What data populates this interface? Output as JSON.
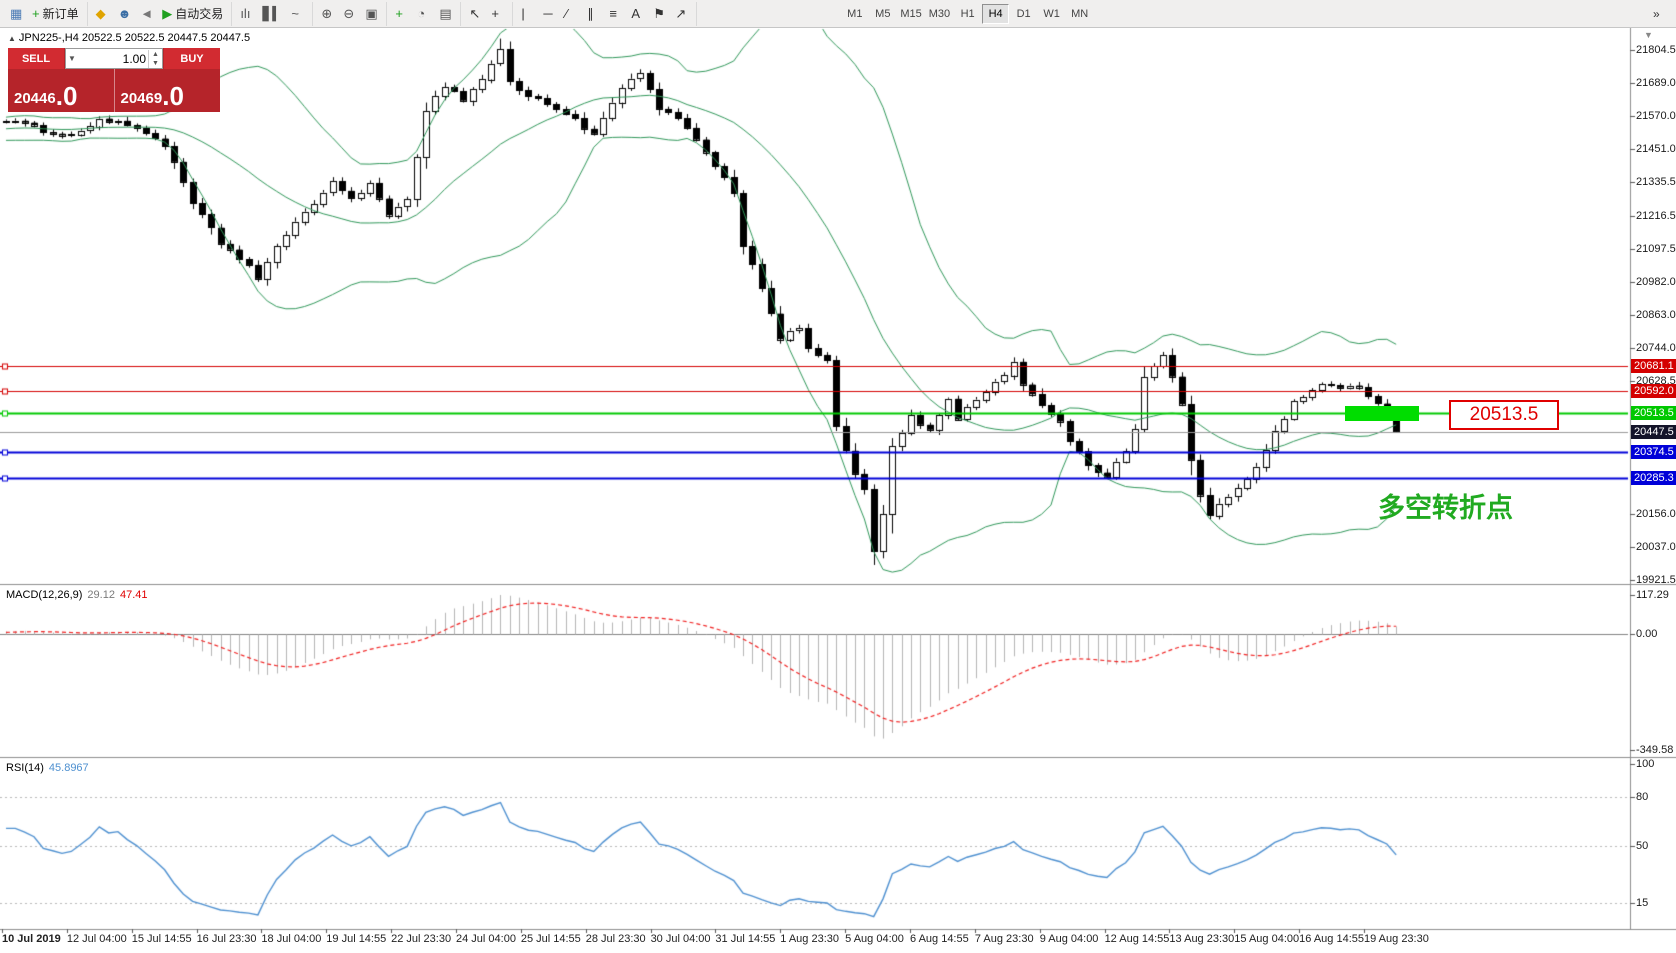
{
  "toolbar": {
    "groups": [
      {
        "name": "charts",
        "items": [
          {
            "name": "new-chart",
            "glyph": "▦",
            "color": "#4a7ab5"
          },
          {
            "name": "new-order",
            "glyph": "+",
            "color": "#1fa01f",
            "label": "新订单"
          }
        ]
      },
      {
        "name": "services",
        "items": [
          {
            "name": "navigator-diamond",
            "glyph": "◆",
            "color": "#e0a400"
          },
          {
            "name": "user-profile",
            "glyph": "☻",
            "color": "#3a6ea5"
          },
          {
            "name": "notifications",
            "glyph": "◄",
            "color": "#777777"
          },
          {
            "name": "autotrading",
            "glyph": "▶",
            "color": "#1fa01f",
            "label": "自动交易"
          }
        ]
      },
      {
        "name": "chart-types",
        "items": [
          {
            "name": "bar-chart",
            "glyph": "ılı",
            "color": "#555555"
          },
          {
            "name": "candlestick-chart",
            "glyph": "▋▍",
            "color": "#555555"
          },
          {
            "name": "line-chart",
            "glyph": "~",
            "color": "#555555"
          }
        ]
      },
      {
        "name": "zoom",
        "items": [
          {
            "name": "zoom-in",
            "glyph": "⊕",
            "color": "#555555"
          },
          {
            "name": "zoom-out",
            "glyph": "⊖",
            "color": "#555555"
          },
          {
            "name": "tile-windows",
            "glyph": "▣",
            "color": "#555555"
          }
        ]
      },
      {
        "name": "chart-tools",
        "items": [
          {
            "name": "indicators",
            "glyph": "+",
            "color": "#1fa01f"
          },
          {
            "name": "periods",
            "glyph": "◔",
            "color": "#555555"
          },
          {
            "name": "templates",
            "glyph": "▤",
            "color": "#555555"
          }
        ]
      },
      {
        "name": "cursor-tools",
        "items": [
          {
            "name": "cursor",
            "glyph": "↖",
            "color": "#333333"
          },
          {
            "name": "crosshair",
            "glyph": "+",
            "color": "#333333"
          }
        ]
      },
      {
        "name": "drawing-tools",
        "items": [
          {
            "name": "vertical-line",
            "glyph": "|",
            "color": "#333333"
          },
          {
            "name": "horizontal-line",
            "glyph": "─",
            "color": "#333333"
          },
          {
            "name": "trendline",
            "glyph": "∕",
            "color": "#333333"
          },
          {
            "name": "equidistant-channel",
            "glyph": "∥",
            "color": "#333333"
          },
          {
            "name": "fibonacci",
            "glyph": "≡",
            "color": "#333333"
          },
          {
            "name": "text",
            "glyph": "A",
            "color": "#333333"
          },
          {
            "name": "text-label",
            "glyph": "⚑",
            "color": "#333333"
          },
          {
            "name": "arrows",
            "glyph": "↗",
            "color": "#333333"
          }
        ]
      }
    ],
    "timeframes": {
      "items": [
        "M1",
        "M5",
        "M15",
        "M30",
        "H1",
        "H4",
        "D1",
        "W1",
        "MN"
      ],
      "active": "H4"
    },
    "overflow_glyph": "»",
    "autoscroll_glyph": "▼"
  },
  "symbol_header": {
    "marker": "▲",
    "text": "JPN225-,H4  20522.5 20522.5 20447.5 20447.5"
  },
  "trade_panel": {
    "sell_label": "SELL",
    "buy_label": "BUY",
    "volume": "1.00",
    "sell_price": "20446",
    "sell_price_decimal": ".0",
    "buy_price": "20469",
    "buy_price_decimal": ".0",
    "dropdown_glyph": "▼",
    "spin_up_glyph": "▲",
    "spin_down_glyph": "▼"
  },
  "chart_data": {
    "type": "candlestick",
    "title": "JPN225- H4",
    "y_ticks": [
      "21804.5",
      "21689.0",
      "21570.0",
      "21451.0",
      "21335.5",
      "21216.5",
      "21097.5",
      "20982.0",
      "20863.0",
      "20744.0",
      "20628.5",
      "20156.0",
      "20037.0",
      "19921.5"
    ],
    "y_tick_values": [
      21804.5,
      21689.0,
      21570.0,
      21451.0,
      21335.5,
      21216.5,
      21097.5,
      20982.0,
      20863.0,
      20744.0,
      20628.5,
      20156.0,
      20037.0,
      19921.5
    ],
    "x_labels": [
      "10 Jul 2019",
      "12 Jul 04:00",
      "15 Jul 14:55",
      "16 Jul 23:30",
      "18 Jul 04:00",
      "19 Jul 14:55",
      "22 Jul 23:30",
      "24 Jul 04:00",
      "25 Jul 14:55",
      "28 Jul 23:30",
      "30 Jul 04:00",
      "31 Jul 14:55",
      "1 Aug 23:30",
      "5 Aug 04:00",
      "6 Aug 14:55",
      "7 Aug 23:30",
      "9 Aug 04:00",
      "12 Aug 14:55",
      "13 Aug 23:30",
      "15 Aug 04:00",
      "16 Aug 14:55",
      "19 Aug 23:30"
    ],
    "levels": [
      {
        "label": "20681.1",
        "value": 20681.1,
        "color": "#d40000",
        "width": 1
      },
      {
        "label": "20592.0",
        "value": 20592.0,
        "color": "#d40000",
        "width": 1
      },
      {
        "label": "20513.5",
        "value": 20513.5,
        "color": "#00c800",
        "width": 2
      },
      {
        "label": "20374.5",
        "value": 20374.5,
        "color": "#0000d8",
        "width": 2
      },
      {
        "label": "20285.3",
        "value": 20285.3,
        "color": "#0000d8",
        "width": 2
      }
    ],
    "current_price": {
      "label": "20447.5",
      "value": 20447.5,
      "tag_color": "#14142a"
    },
    "last_candle": {
      "open": 20522.5,
      "high": 20522.5,
      "low": 20447.5,
      "close": 20447.5
    },
    "candle_count": 150,
    "visible_high": 21845,
    "visible_low": 19975,
    "price_waypoints": [
      [
        0,
        21560
      ],
      [
        4,
        21520
      ],
      [
        7,
        21500
      ],
      [
        10,
        21560
      ],
      [
        14,
        21530
      ],
      [
        17,
        21470
      ],
      [
        20,
        21260
      ],
      [
        23,
        21120
      ],
      [
        26,
        21040
      ],
      [
        27,
        20990
      ],
      [
        29,
        21100
      ],
      [
        31,
        21200
      ],
      [
        33,
        21260
      ],
      [
        35,
        21330
      ],
      [
        37,
        21280
      ],
      [
        39,
        21330
      ],
      [
        41,
        21210
      ],
      [
        43,
        21280
      ],
      [
        44,
        21430
      ],
      [
        45,
        21590
      ],
      [
        47,
        21680
      ],
      [
        49,
        21630
      ],
      [
        51,
        21700
      ],
      [
        53,
        21810
      ],
      [
        54,
        21690
      ],
      [
        56,
        21640
      ],
      [
        59,
        21600
      ],
      [
        61,
        21560
      ],
      [
        63,
        21500
      ],
      [
        64,
        21560
      ],
      [
        66,
        21670
      ],
      [
        68,
        21720
      ],
      [
        70,
        21600
      ],
      [
        72,
        21560
      ],
      [
        74,
        21480
      ],
      [
        76,
        21400
      ],
      [
        78,
        21300
      ],
      [
        79,
        21110
      ],
      [
        80,
        21050
      ],
      [
        82,
        20860
      ],
      [
        83,
        20780
      ],
      [
        85,
        20820
      ],
      [
        86,
        20750
      ],
      [
        88,
        20700
      ],
      [
        89,
        20460
      ],
      [
        91,
        20300
      ],
      [
        92,
        20240
      ],
      [
        93,
        20020
      ],
      [
        94,
        20160
      ],
      [
        95,
        20390
      ],
      [
        97,
        20500
      ],
      [
        99,
        20450
      ],
      [
        101,
        20560
      ],
      [
        102,
        20500
      ],
      [
        104,
        20560
      ],
      [
        106,
        20620
      ],
      [
        108,
        20690
      ],
      [
        109,
        20620
      ],
      [
        111,
        20550
      ],
      [
        113,
        20480
      ],
      [
        114,
        20420
      ],
      [
        116,
        20330
      ],
      [
        118,
        20290
      ],
      [
        120,
        20380
      ],
      [
        121,
        20460
      ],
      [
        122,
        20640
      ],
      [
        124,
        20720
      ],
      [
        125,
        20650
      ],
      [
        126,
        20540
      ],
      [
        127,
        20350
      ],
      [
        128,
        20220
      ],
      [
        129,
        20150
      ],
      [
        131,
        20220
      ],
      [
        133,
        20280
      ],
      [
        135,
        20380
      ],
      [
        136,
        20450
      ],
      [
        138,
        20550
      ],
      [
        140,
        20600
      ],
      [
        141,
        20620
      ],
      [
        143,
        20600
      ],
      [
        145,
        20610
      ],
      [
        146,
        20580
      ],
      [
        148,
        20522.5
      ],
      [
        149,
        20447.5
      ]
    ],
    "pre_waypoints": [
      [
        -20,
        21500
      ],
      [
        -16,
        21560
      ],
      [
        -12,
        21480
      ],
      [
        -8,
        21545
      ],
      [
        -4,
        21500
      ],
      [
        -1,
        21550
      ]
    ],
    "bollinger": {
      "period": 20,
      "deviation": 2,
      "color": "#2e9658"
    },
    "candle_colors": {
      "up": "#ffffff",
      "down": "#000000",
      "border": "#000000"
    },
    "macd": {
      "label": "MACD(12,26,9)",
      "value": "29.12",
      "signal_value": "47.41",
      "ticks": [
        {
          "label": "117.29",
          "v": 117.29
        },
        {
          "label": "0.00",
          "v": 0
        },
        {
          "label": "-349.58",
          "v": -349.58
        }
      ],
      "hist_color": "#b4b4b4",
      "signal_color": "#f02020"
    },
    "rsi": {
      "label": "RSI(14)",
      "value": "45.8967",
      "ticks": [
        {
          "label": "100",
          "v": 100
        },
        {
          "label": "80",
          "v": 80
        },
        {
          "label": "50",
          "v": 50
        },
        {
          "label": "15",
          "v": 15
        }
      ],
      "levels": [
        80,
        50,
        15
      ],
      "color": "#4e90d0"
    },
    "annotations": {
      "zone_label": "20513.5",
      "turning_point": "多空转折点",
      "zone_color": "#00dd00",
      "label_color": "#e00000",
      "turning_color": "#21aa21"
    }
  }
}
